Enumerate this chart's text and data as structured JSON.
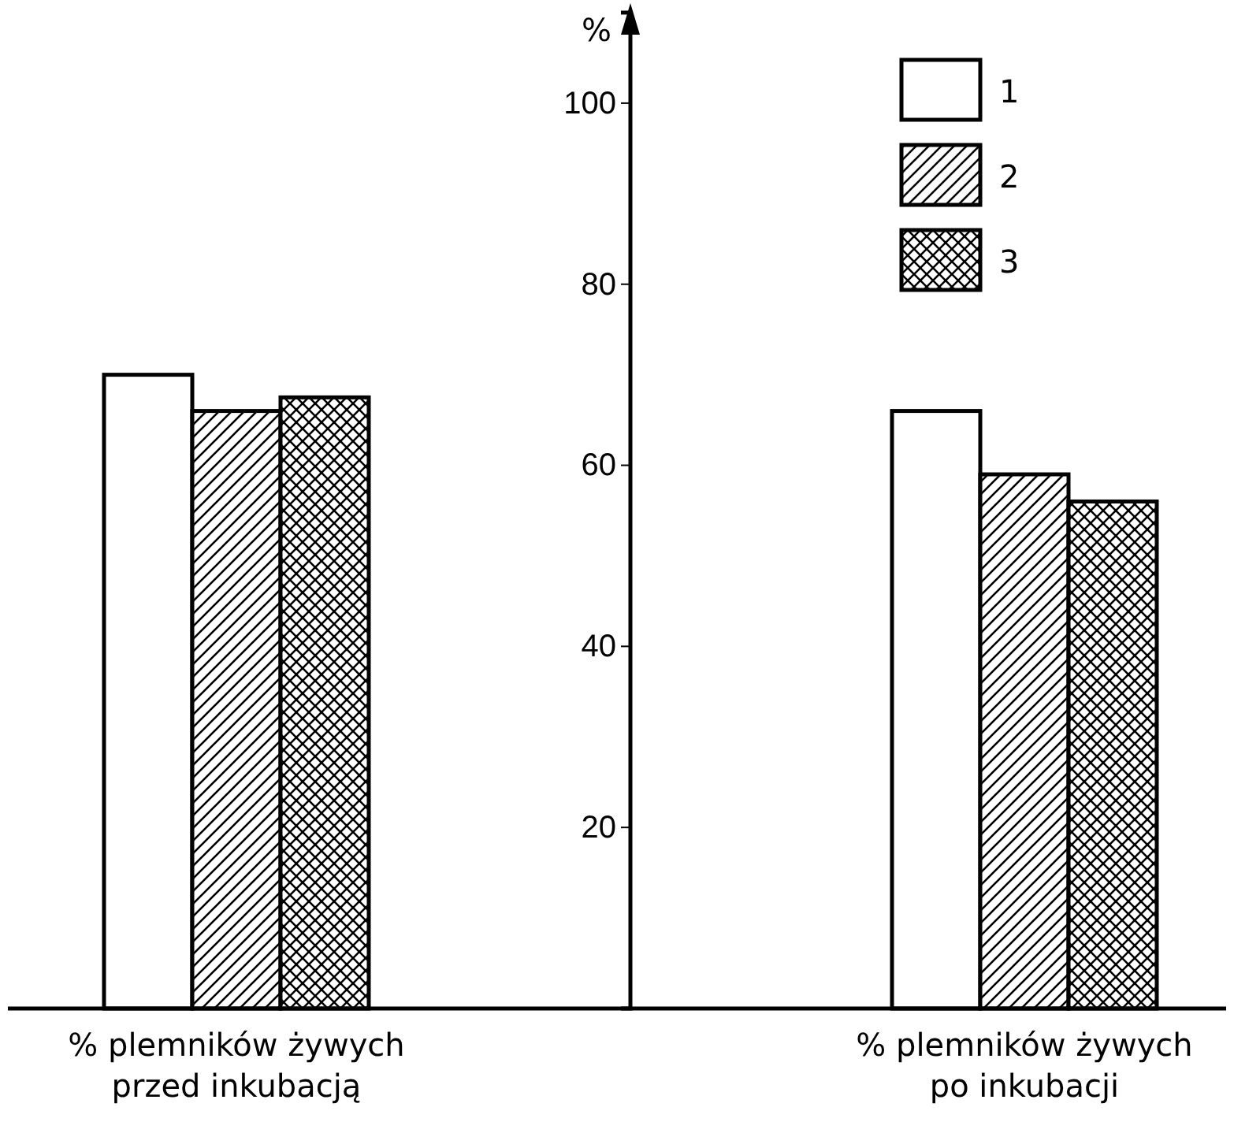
{
  "chart_data": {
    "type": "bar",
    "categories": [
      "% plemników żywych przed inkubacją",
      "% plemników żywych po inkubacji"
    ],
    "ylabel": "%",
    "ylim": [
      0,
      110
    ],
    "yticks": [
      20,
      40,
      60,
      80,
      100
    ],
    "grid": false,
    "legend": "top right",
    "series": [
      {
        "name": "1",
        "color": "#ffffff",
        "values": [
          70,
          66
        ]
      },
      {
        "name": "2",
        "color": "#000000",
        "values": [
          66,
          59
        ]
      },
      {
        "name": "3",
        "color": "#000000",
        "values": [
          67.5,
          56
        ]
      }
    ]
  }
}
